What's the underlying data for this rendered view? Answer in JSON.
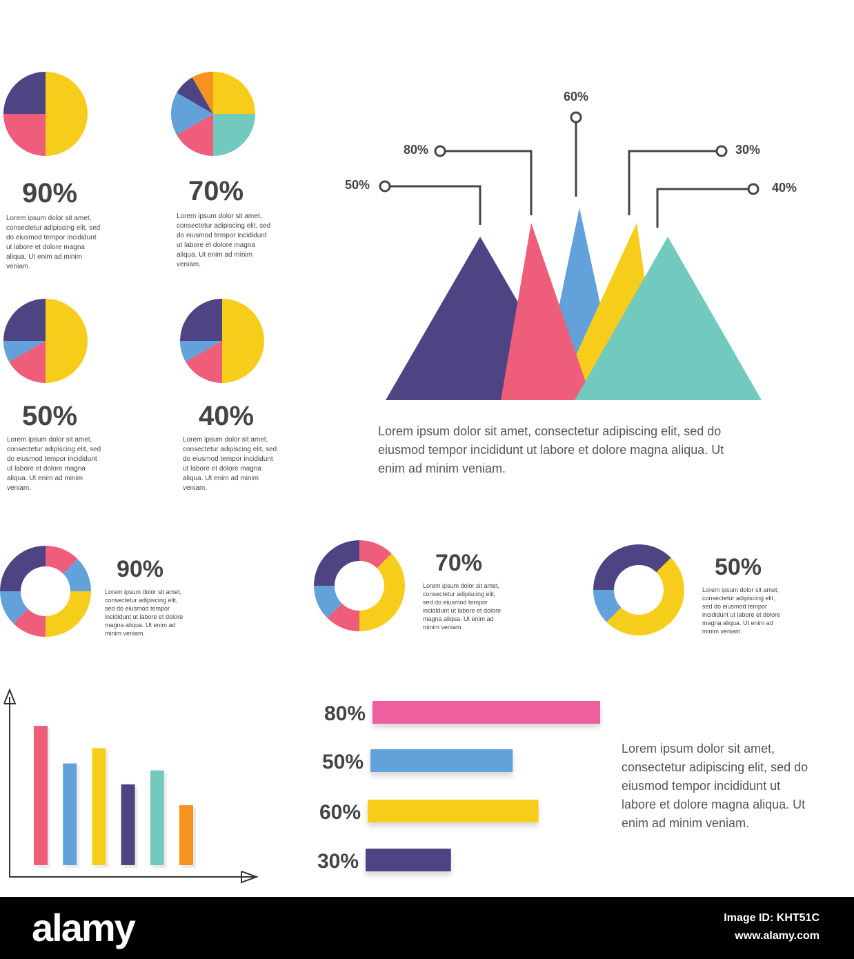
{
  "colors": {
    "pink": "#ee5e7a",
    "blue": "#62a1da",
    "yellow": "#f7cd1c",
    "purple": "#4e4483",
    "teal": "#72c9bd",
    "orange": "#f6921e",
    "magenta": "#ee5ea0",
    "label": "#444444",
    "footer": "#000000"
  },
  "lorem_short": "Lorem ipsum dolor sit amet,\nconsectetur adipiscing elit, sed\ndo eiusmod tempor incididunt\nut labore et dolore magna\naliqua. Ut enim ad minim\nveniam.",
  "lorem_narrow": "Lorem ipsum dolor sit amet,\nconsectetur adipiscing elit,\nsed do eiusmod tempor\nincididunt ut labore et dolore\nmagna aliqua. Ut enim ad\nminim veniam.",
  "lorem_wide": "Lorem ipsum dolor sit amet, consectetur adipiscing elit, sed do\neiusmod tempor incididunt ut labore et dolore magna aliqua. Ut\nenim ad minim veniam.",
  "lorem_bars": "Lorem ipsum dolor sit amet,\nconsectetur adipiscing elit, sed do\neiusmod tempor incididunt ut\nlabore et dolore magna aliqua. Ut\nenim ad minim veniam.",
  "chart_data": [
    {
      "type": "pie",
      "label": "90%",
      "slices": [
        {
          "color": "yellow",
          "value": 50
        },
        {
          "color": "pink",
          "value": 25
        },
        {
          "color": "purple",
          "value": 25
        }
      ]
    },
    {
      "type": "pie",
      "label": "70%",
      "slices": [
        {
          "color": "yellow",
          "value": 25
        },
        {
          "color": "teal",
          "value": 25
        },
        {
          "color": "pink",
          "value": 16.7
        },
        {
          "color": "blue",
          "value": 16.7
        },
        {
          "color": "purple",
          "value": 8.3
        },
        {
          "color": "orange",
          "value": 8.3
        }
      ]
    },
    {
      "type": "pie",
      "label": "50%",
      "slices": [
        {
          "color": "yellow",
          "value": 50
        },
        {
          "color": "pink",
          "value": 16.7
        },
        {
          "color": "blue",
          "value": 8.3
        },
        {
          "color": "purple",
          "value": 25
        }
      ]
    },
    {
      "type": "pie",
      "label": "40%",
      "slices": [
        {
          "color": "yellow",
          "value": 50
        },
        {
          "color": "pink",
          "value": 16.7
        },
        {
          "color": "blue",
          "value": 8.3
        },
        {
          "color": "purple",
          "value": 25
        }
      ]
    },
    {
      "type": "triangles",
      "labels": [
        "50%",
        "80%",
        "60%",
        "30%",
        "40%"
      ],
      "peaks": [
        {
          "color": "pink",
          "label": "50%"
        },
        {
          "color": "blue",
          "label": "80%"
        },
        {
          "color": "yellow",
          "label": "60%"
        },
        {
          "color": "purple",
          "label": "30%"
        },
        {
          "color": "teal",
          "label": "40%"
        }
      ]
    },
    {
      "type": "donut",
      "label": "90%",
      "slices": [
        {
          "color": "pink",
          "value": 12.5
        },
        {
          "color": "blue",
          "value": 12.5
        },
        {
          "color": "yellow",
          "value": 25
        },
        {
          "color": "pink",
          "value": 12.5
        },
        {
          "color": "blue",
          "value": 12.5
        },
        {
          "color": "purple",
          "value": 25
        }
      ]
    },
    {
      "type": "donut",
      "label": "70%",
      "slices": [
        {
          "color": "pink",
          "value": 12.5
        },
        {
          "color": "yellow",
          "value": 37.5
        },
        {
          "color": "pink",
          "value": 12.5
        },
        {
          "color": "blue",
          "value": 12.5
        },
        {
          "color": "purple",
          "value": 25
        }
      ]
    },
    {
      "type": "donut",
      "label": "50%",
      "slices": [
        {
          "color": "purple",
          "value": 12.5
        },
        {
          "color": "yellow",
          "value": 50
        },
        {
          "color": "blue",
          "value": 12.5
        },
        {
          "color": "purple",
          "value": 25
        }
      ]
    },
    {
      "type": "bar",
      "orientation": "vertical",
      "xlabel": "",
      "ylabel": "",
      "values": [
        100,
        73,
        84,
        58,
        68,
        43
      ],
      "colors": [
        "pink",
        "blue",
        "yellow",
        "purple",
        "teal",
        "orange"
      ]
    },
    {
      "type": "bar",
      "orientation": "horizontal",
      "categories": [
        "80%",
        "50%",
        "60%",
        "30%"
      ],
      "values": [
        80,
        50,
        60,
        30
      ],
      "colors": [
        "magenta",
        "blue",
        "yellow",
        "purple"
      ]
    }
  ],
  "footer": {
    "logo": "alamy",
    "image_id": "Image ID: KHT51C",
    "site": "www.alamy.com"
  }
}
